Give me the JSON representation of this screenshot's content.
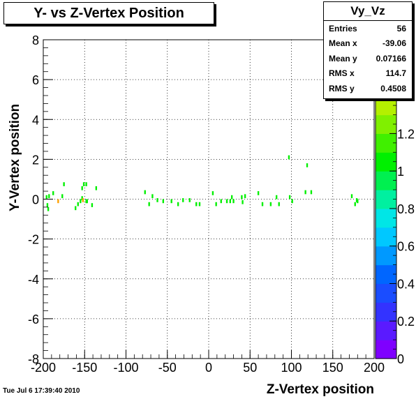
{
  "title": "Y- vs Z-Vertex Position",
  "timestamp": "Tue Jul  6 17:39:40 2010",
  "stats": {
    "name": "Vy_Vz",
    "rows": [
      {
        "label": "Entries",
        "value": "56"
      },
      {
        "label": "Mean x",
        "value": "-39.06"
      },
      {
        "label": "Mean y",
        "value": "0.07166"
      },
      {
        "label": "RMS x",
        "value": "114.7"
      },
      {
        "label": "RMS y",
        "value": "0.4508"
      }
    ]
  },
  "chart_data": {
    "type": "heatmap",
    "title": "Y- vs Z-Vertex Position",
    "xlabel": "Z-Vertex position",
    "ylabel": "Y-Vertex position",
    "xlim": [
      -200,
      200
    ],
    "ylim": [
      -8,
      8
    ],
    "xticks": [
      "-200",
      "-150",
      "-100",
      "-50",
      "0",
      "50",
      "100",
      "150",
      "200"
    ],
    "yticks": [
      "-8",
      "-6",
      "-4",
      "-2",
      "0",
      "2",
      "4",
      "6",
      "8"
    ],
    "zlim": [
      0,
      1.7
    ],
    "zticks": [
      "0",
      "0.2",
      "0.4",
      "0.6",
      "0.8",
      "1",
      "1.2",
      "1.4",
      "1.6"
    ],
    "grid": true,
    "palette": [
      "#7f00ff",
      "#5a1aff",
      "#3333ff",
      "#1a4dff",
      "#0066ff",
      "#0099ff",
      "#00c8ff",
      "#00e6e6",
      "#00f0a0",
      "#00f050",
      "#00f000",
      "#40f000",
      "#80f000",
      "#b4f000",
      "#e6f000",
      "#ffd000",
      "#ffa000"
    ],
    "points": [
      {
        "x": -196,
        "y": 0.1,
        "z": 1
      },
      {
        "x": -195,
        "y": -0.3,
        "z": 1
      },
      {
        "x": -194,
        "y": -0.5,
        "z": 1
      },
      {
        "x": -193,
        "y": 0.15,
        "z": 1
      },
      {
        "x": -188,
        "y": 0.3,
        "z": 1
      },
      {
        "x": -182,
        "y": -0.1,
        "z": 1.6
      },
      {
        "x": -177,
        "y": 0.15,
        "z": 1
      },
      {
        "x": -175,
        "y": 0.75,
        "z": 1
      },
      {
        "x": -161,
        "y": -0.45,
        "z": 1
      },
      {
        "x": -158,
        "y": -0.25,
        "z": 1
      },
      {
        "x": -155,
        "y": -0.1,
        "z": 1
      },
      {
        "x": -153,
        "y": 0.05,
        "z": 1
      },
      {
        "x": -153,
        "y": 0.55,
        "z": 1
      },
      {
        "x": -152,
        "y": -0.05,
        "z": 1.6
      },
      {
        "x": -151,
        "y": 0.75,
        "z": 1
      },
      {
        "x": -148,
        "y": 0.75,
        "z": 1
      },
      {
        "x": -148,
        "y": -0.1,
        "z": 1
      },
      {
        "x": -147,
        "y": -0.1,
        "z": 1
      },
      {
        "x": -141,
        "y": -0.3,
        "z": 1
      },
      {
        "x": -136,
        "y": 0.55,
        "z": 1
      },
      {
        "x": -77,
        "y": 0.35,
        "z": 1
      },
      {
        "x": -72,
        "y": -0.25,
        "z": 1
      },
      {
        "x": -68,
        "y": 0.15,
        "z": 1
      },
      {
        "x": -62,
        "y": -0.05,
        "z": 1
      },
      {
        "x": -55,
        "y": -0.1,
        "z": 1
      },
      {
        "x": -45,
        "y": -0.1,
        "z": 1
      },
      {
        "x": -37,
        "y": -0.25,
        "z": 1
      },
      {
        "x": -31,
        "y": -0.05,
        "z": 1
      },
      {
        "x": -23,
        "y": -0.05,
        "z": 1
      },
      {
        "x": -15,
        "y": -0.25,
        "z": 1
      },
      {
        "x": -11,
        "y": -0.25,
        "z": 1
      },
      {
        "x": 5,
        "y": 0.3,
        "z": 1
      },
      {
        "x": 9,
        "y": -0.25,
        "z": 1
      },
      {
        "x": 15,
        "y": -0.1,
        "z": 1
      },
      {
        "x": 22,
        "y": -0.1,
        "z": 1
      },
      {
        "x": 26,
        "y": -0.1,
        "z": 1
      },
      {
        "x": 28,
        "y": 0.1,
        "z": 1
      },
      {
        "x": 30,
        "y": -0.1,
        "z": 1
      },
      {
        "x": 40,
        "y": 0.1,
        "z": 1
      },
      {
        "x": 41,
        "y": -0.15,
        "z": 1
      },
      {
        "x": 44,
        "y": 0.15,
        "z": 1
      },
      {
        "x": 60,
        "y": 0.3,
        "z": 1
      },
      {
        "x": 65,
        "y": -0.25,
        "z": 1
      },
      {
        "x": 75,
        "y": -0.25,
        "z": 1
      },
      {
        "x": 82,
        "y": 0.1,
        "z": 1
      },
      {
        "x": 85,
        "y": -0.25,
        "z": 1
      },
      {
        "x": 97,
        "y": 2.1,
        "z": 1
      },
      {
        "x": 98,
        "y": 0.1,
        "z": 1
      },
      {
        "x": 101,
        "y": -0.1,
        "z": 1
      },
      {
        "x": 117,
        "y": 0.35,
        "z": 1
      },
      {
        "x": 119,
        "y": 1.7,
        "z": 1
      },
      {
        "x": 124,
        "y": 0.35,
        "z": 1
      },
      {
        "x": 173,
        "y": 0.15,
        "z": 1
      },
      {
        "x": 177,
        "y": -0.25,
        "z": 1
      },
      {
        "x": 179,
        "y": -0.05,
        "z": 1
      },
      {
        "x": 180,
        "y": -0.1,
        "z": 1
      }
    ]
  }
}
